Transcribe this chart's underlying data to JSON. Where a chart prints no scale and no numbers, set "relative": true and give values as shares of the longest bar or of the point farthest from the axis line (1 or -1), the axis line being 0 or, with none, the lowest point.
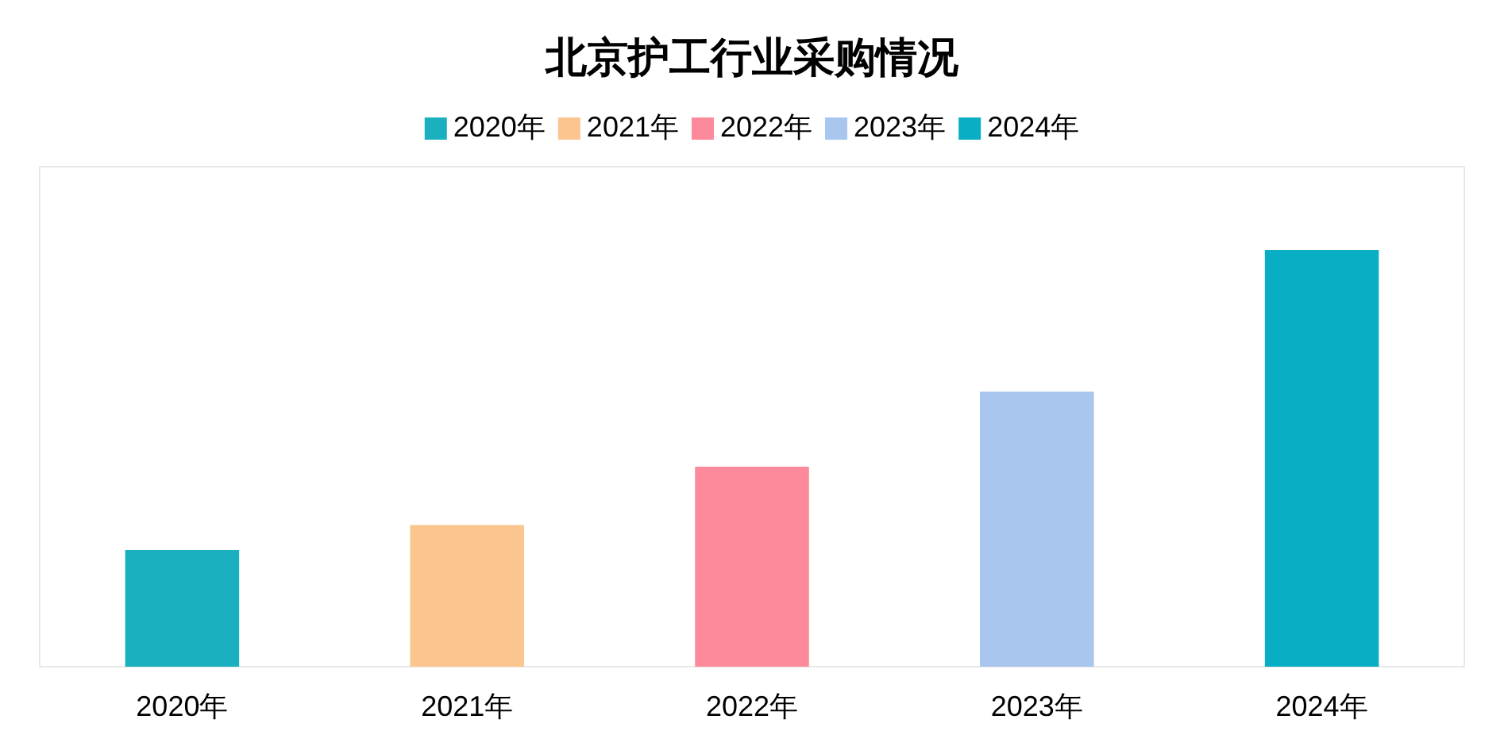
{
  "chart_data": {
    "type": "bar",
    "title": "北京护工行业采购情况",
    "categories": [
      "2020年",
      "2021年",
      "2022年",
      "2023年",
      "2024年"
    ],
    "series": [
      {
        "name": "2020年",
        "color": "#1ab0c0",
        "values": [
          0.28,
          null,
          null,
          null,
          null
        ]
      },
      {
        "name": "2021年",
        "color": "#fcc58f",
        "values": [
          null,
          0.34,
          null,
          null,
          null
        ]
      },
      {
        "name": "2022年",
        "color": "#fd8a9a",
        "values": [
          null,
          null,
          0.48,
          null,
          null
        ]
      },
      {
        "name": "2023年",
        "color": "#a9c6ee",
        "values": [
          null,
          null,
          null,
          0.66,
          null
        ]
      },
      {
        "name": "2024年",
        "color": "#0aaec4",
        "values": [
          null,
          null,
          null,
          null,
          1
        ]
      }
    ],
    "relative": true,
    "legend": "top"
  }
}
